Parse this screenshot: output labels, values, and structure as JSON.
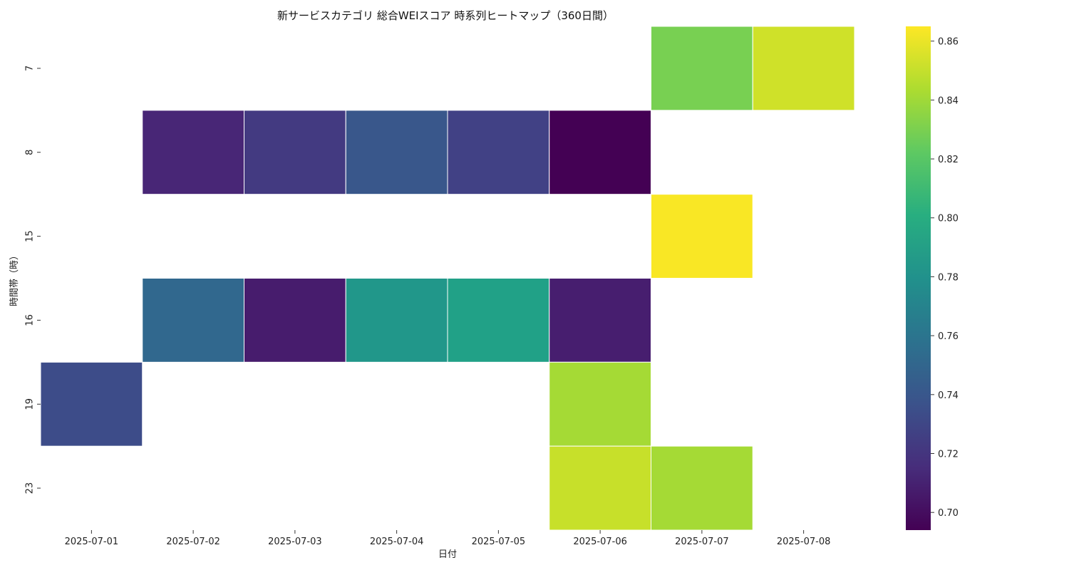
{
  "chart_data": {
    "type": "heatmap",
    "title": "新サービスカテゴリ 総合WEIスコア 時系列ヒートマップ（360日間）",
    "xlabel": "日付",
    "ylabel": "時間帯（時）",
    "x_categories": [
      "2025-07-01",
      "2025-07-02",
      "2025-07-03",
      "2025-07-04",
      "2025-07-05",
      "2025-07-06",
      "2025-07-07",
      "2025-07-08"
    ],
    "y_categories": [
      "7",
      "8",
      "15",
      "16",
      "19",
      "23"
    ],
    "values": [
      [
        null,
        null,
        null,
        null,
        null,
        null,
        0.83,
        0.853
      ],
      [
        null,
        0.712,
        0.723,
        0.74,
        0.727,
        0.694,
        null,
        null
      ],
      [
        null,
        null,
        null,
        null,
        null,
        null,
        0.864,
        null
      ],
      [
        null,
        0.751,
        0.707,
        0.784,
        0.791,
        0.708,
        null,
        null
      ],
      [
        0.733,
        null,
        null,
        null,
        null,
        0.842,
        null,
        null
      ],
      [
        null,
        null,
        null,
        null,
        null,
        0.851,
        0.842,
        null
      ]
    ],
    "colormap": "viridis",
    "vmin": 0.694,
    "vmax": 0.865,
    "colorbar_ticks": [
      "0.70",
      "0.72",
      "0.74",
      "0.76",
      "0.78",
      "0.80",
      "0.82",
      "0.84",
      "0.86"
    ],
    "colorbar_tick_values": [
      0.7,
      0.72,
      0.74,
      0.76,
      0.78,
      0.8,
      0.82,
      0.84,
      0.86
    ]
  }
}
